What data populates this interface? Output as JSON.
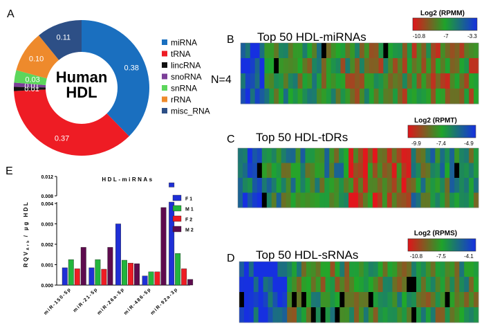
{
  "panel_labels": {
    "a": "A",
    "b": "B",
    "c": "C",
    "d": "D",
    "e": "E"
  },
  "heatmap_side_label": "N=4",
  "colors": {
    "miRNA": "#1a6fbf",
    "tRNA": "#ee1c24",
    "lincRNA": "#111111",
    "snoRNA": "#7b3f98",
    "snRNA": "#5cd65c",
    "rRNA": "#ee8a2c",
    "misc_RNA": "#2d4f86",
    "F1": "#1f2fd6",
    "M1": "#22b53c",
    "F2": "#ee1c24",
    "M2": "#5e0b4e"
  },
  "chart_data": [
    {
      "type": "pie",
      "title": "Human HDL",
      "center_label_line1": "Human",
      "center_label_line2": "HDL",
      "labels": [
        "miRNA",
        "tRNA",
        "lincRNA",
        "snoRNA",
        "snRNA",
        "rRNA",
        "misc_RNA"
      ],
      "values": [
        0.38,
        0.37,
        0.01,
        0.01,
        0.03,
        0.1,
        0.11
      ],
      "value_labels": [
        "0.38",
        "0.37",
        "0.01",
        "0.01",
        "0.03",
        "0.10",
        "0.11"
      ],
      "legend_position": "right"
    },
    {
      "type": "heatmap",
      "title": "Top 50 HDL-miRNAs",
      "colorbar_label": "Log2 (RPMM)",
      "colorbar_ticks": [
        "-10.8",
        "-7",
        "-3.3"
      ],
      "rows": 4,
      "columns": 50
    },
    {
      "type": "heatmap",
      "title": "Top 50 HDL-tDRs",
      "colorbar_label": "Log2 (RPMT)",
      "colorbar_ticks": [
        "-9.9",
        "-7.4",
        "-4.9"
      ],
      "rows": 4,
      "columns": 50
    },
    {
      "type": "heatmap",
      "title": "Top 50 HDL-sRNAs",
      "colorbar_label": "Log2 (RPMS)",
      "colorbar_ticks": [
        "-10.8",
        "-7.5",
        "-4.1"
      ],
      "rows": 4,
      "columns": 50
    },
    {
      "type": "bar",
      "title": "HDL-miRNAs",
      "ylabel": "RQV Arb / µg HDL",
      "ylabel_main": "RQV",
      "ylabel_sub": "Arb",
      "ylabel_tail": "/ µg HDL",
      "categories": [
        "miR-150-5p",
        "miR-21-5p",
        "miR-26a-5p",
        "miR-486-5p",
        "miR-92a-3p"
      ],
      "series": [
        {
          "name": "F1",
          "values": [
            0.00085,
            0.00085,
            0.003,
            0.00045,
            0.0107
          ]
        },
        {
          "name": "M1",
          "values": [
            0.00125,
            0.00125,
            0.00122,
            0.00065,
            0.00155
          ]
        },
        {
          "name": "F2",
          "values": [
            0.0008,
            0.00078,
            0.00108,
            0.00065,
            0.0008
          ]
        },
        {
          "name": "M2",
          "values": [
            0.00185,
            0.00185,
            0.00105,
            0.0038,
            0.00028
          ]
        }
      ],
      "yticks_lower": [
        "0.000",
        "0.001",
        "0.002",
        "0.003",
        "0.004"
      ],
      "yticks_upper": [
        "0.008",
        "0.012"
      ],
      "ylim_lower": [
        0,
        0.004
      ],
      "ylim_upper": [
        0.008,
        0.012
      ],
      "legend_position": "right"
    }
  ]
}
